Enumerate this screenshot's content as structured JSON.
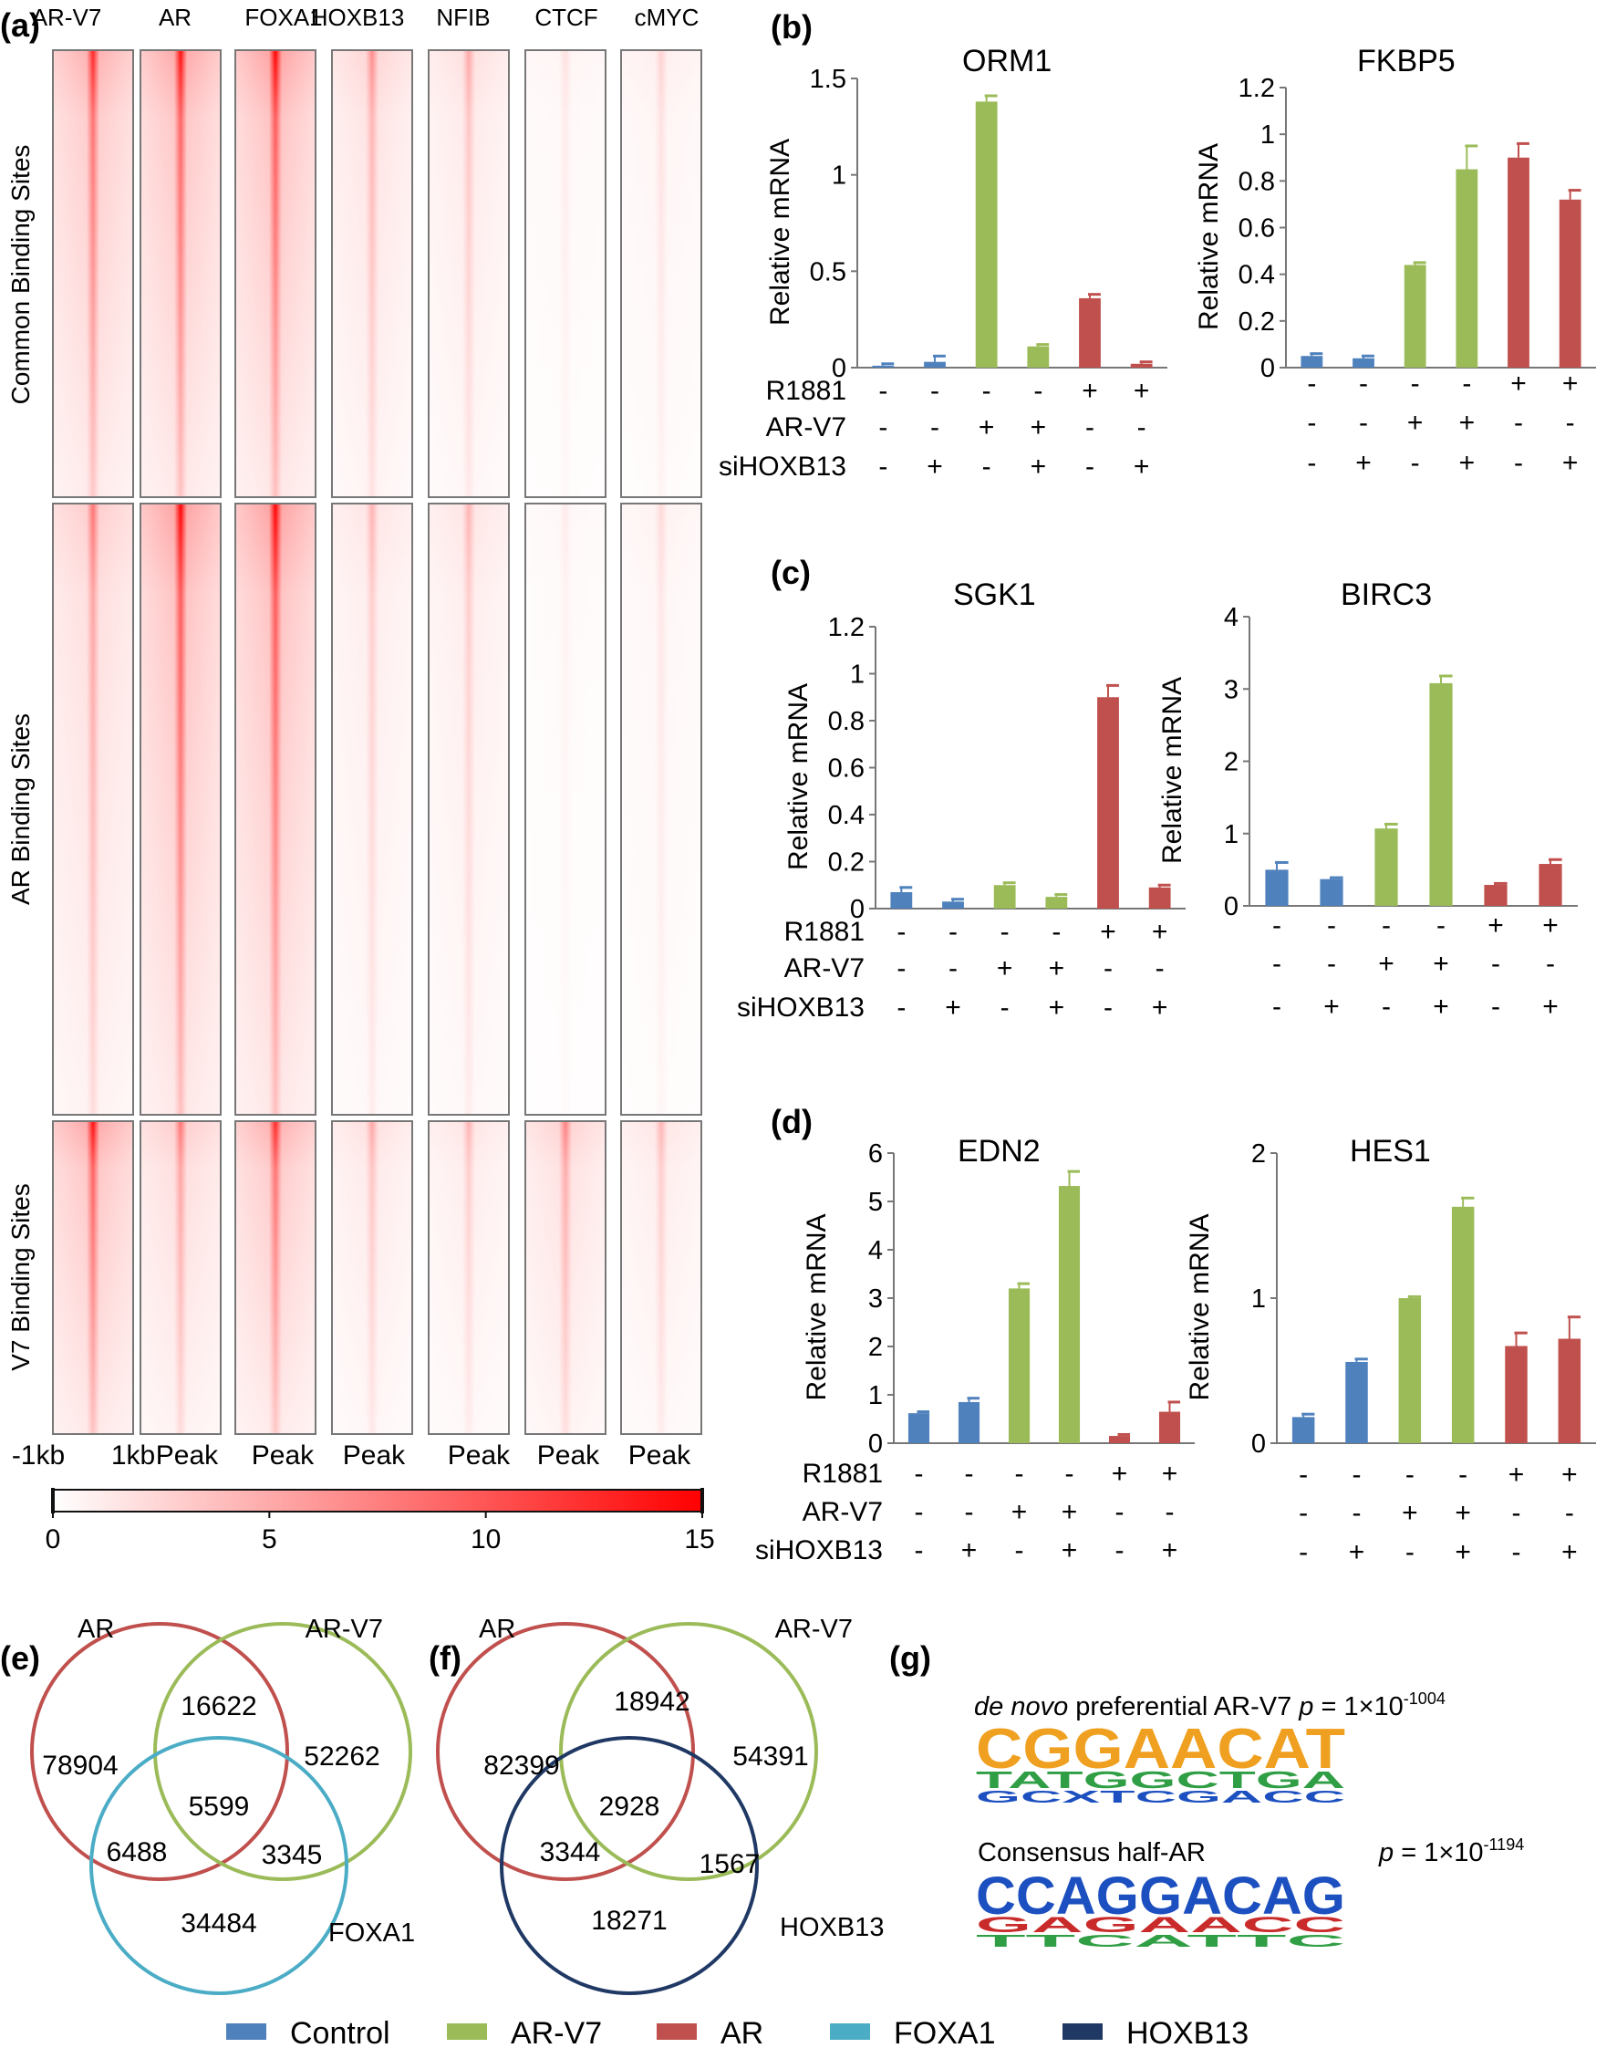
{
  "panel_labels": {
    "a": "(a)",
    "b": "(b)",
    "c": "(c)",
    "d": "(d)",
    "e": "(e)",
    "f": "(f)",
    "g": "(g)"
  },
  "legend": {
    "items": [
      {
        "name": "Control",
        "color": "#4f81bd"
      },
      {
        "name": "AR-V7",
        "color": "#9bbb59"
      },
      {
        "name": "AR",
        "color": "#c0504d"
      },
      {
        "name": "FOXA1",
        "color": "#4bacc6"
      },
      {
        "name": "HOXB13",
        "color": "#1f3864"
      }
    ]
  },
  "chart_data": [
    {
      "type": "heatmap",
      "panel": "(a)",
      "columns": [
        "AR-V7",
        "AR",
        "FOXA1",
        "HOXB13",
        "NFIB",
        "CTCF",
        "cMYC"
      ],
      "row_groups": [
        "Common Binding Sites",
        "AR Binding Sites",
        "V7 Binding Sites"
      ],
      "x_labels": [
        "-1kb",
        "1kb",
        "Peak",
        "Peak",
        "Peak",
        "Peak",
        "Peak",
        "Peak"
      ],
      "colorbar": {
        "min": 0,
        "max": 15,
        "ticks": [
          0,
          5,
          10,
          15
        ],
        "colors": [
          "#ffffff",
          "#ff0000"
        ]
      },
      "relative_intensity": [
        [
          0.85,
          0.95,
          1.0,
          0.45,
          0.35,
          0.12,
          0.18
        ],
        [
          0.55,
          1.0,
          1.0,
          0.3,
          0.3,
          0.08,
          0.15
        ],
        [
          0.95,
          0.55,
          0.85,
          0.35,
          0.3,
          0.5,
          0.3
        ]
      ]
    },
    {
      "type": "bar",
      "panel": "(b)",
      "title": "ORM1",
      "ylabel": "Relative mRNA",
      "ylim": [
        0,
        1.5
      ],
      "yticks": [
        "0",
        "0.5",
        "1",
        "1.5"
      ],
      "values": [
        0.01,
        0.03,
        1.38,
        0.11,
        0.36,
        0.02
      ],
      "errors": [
        0.01,
        0.03,
        0.03,
        0.01,
        0.02,
        0.01
      ],
      "colors": [
        "#4f81bd",
        "#4f81bd",
        "#9bbb59",
        "#9bbb59",
        "#c0504d",
        "#c0504d"
      ],
      "conditions": {
        "R1881": [
          "-",
          "-",
          "-",
          "-",
          "+",
          "+"
        ],
        "AR-V7": [
          "-",
          "-",
          "+",
          "+",
          "-",
          "-"
        ],
        "siHOXB13": [
          "-",
          "+",
          "-",
          "+",
          "-",
          "+"
        ]
      }
    },
    {
      "type": "bar",
      "panel": "(b)",
      "title": "FKBP5",
      "ylabel": "Relative mRNA",
      "ylim": [
        0,
        1.2
      ],
      "yticks": [
        "0",
        "0.2",
        "0.4",
        "0.6",
        "0.8",
        "1",
        "1.2"
      ],
      "values": [
        0.05,
        0.04,
        0.44,
        0.85,
        0.9,
        0.72
      ],
      "errors": [
        0.01,
        0.01,
        0.01,
        0.1,
        0.06,
        0.04
      ],
      "colors": [
        "#4f81bd",
        "#4f81bd",
        "#9bbb59",
        "#9bbb59",
        "#c0504d",
        "#c0504d"
      ],
      "conditions": {
        "R1881": [
          "-",
          "-",
          "-",
          "-",
          "+",
          "+"
        ],
        "AR-V7": [
          "-",
          "-",
          "+",
          "+",
          "-",
          "-"
        ],
        "siHOXB13": [
          "-",
          "+",
          "-",
          "+",
          "-",
          "+"
        ]
      }
    },
    {
      "type": "bar",
      "panel": "(c)",
      "title": "SGK1",
      "ylabel": "Relative mRNA",
      "ylim": [
        0,
        1.2
      ],
      "yticks": [
        "0",
        "0.2",
        "0.4",
        "0.6",
        "0.8",
        "1",
        "1.2"
      ],
      "values": [
        0.07,
        0.03,
        0.1,
        0.05,
        0.9,
        0.09
      ],
      "errors": [
        0.02,
        0.01,
        0.01,
        0.01,
        0.05,
        0.01
      ],
      "colors": [
        "#4f81bd",
        "#4f81bd",
        "#9bbb59",
        "#9bbb59",
        "#c0504d",
        "#c0504d"
      ],
      "conditions": {
        "R1881": [
          "-",
          "-",
          "-",
          "-",
          "+",
          "+"
        ],
        "AR-V7": [
          "-",
          "-",
          "+",
          "+",
          "-",
          "-"
        ],
        "siHOXB13": [
          "-",
          "+",
          "-",
          "+",
          "-",
          "+"
        ]
      }
    },
    {
      "type": "bar",
      "panel": "(c)",
      "title": "BIRC3",
      "ylabel": "Relative mRNA",
      "ylim": [
        0,
        4
      ],
      "yticks": [
        "0",
        "1",
        "2",
        "3",
        "4"
      ],
      "values": [
        0.5,
        0.37,
        1.07,
        3.08,
        0.29,
        0.58
      ],
      "errors": [
        0.1,
        0.02,
        0.06,
        0.1,
        0.02,
        0.06
      ],
      "colors": [
        "#4f81bd",
        "#4f81bd",
        "#9bbb59",
        "#9bbb59",
        "#c0504d",
        "#c0504d"
      ],
      "conditions": {
        "R1881": [
          "-",
          "-",
          "-",
          "-",
          "+",
          "+"
        ],
        "AR-V7": [
          "-",
          "-",
          "+",
          "+",
          "-",
          "-"
        ],
        "siHOXB13": [
          "-",
          "+",
          "-",
          "+",
          "-",
          "+"
        ]
      }
    },
    {
      "type": "bar",
      "panel": "(d)",
      "title": "EDN2",
      "ylabel": "Relative mRNA",
      "ylim": [
        0,
        6
      ],
      "yticks": [
        "0",
        "1",
        "2",
        "3",
        "4",
        "5",
        "6"
      ],
      "values": [
        0.62,
        0.85,
        3.2,
        5.32,
        0.15,
        0.65
      ],
      "errors": [
        0.03,
        0.08,
        0.1,
        0.3,
        0.03,
        0.2
      ],
      "colors": [
        "#4f81bd",
        "#4f81bd",
        "#9bbb59",
        "#9bbb59",
        "#c0504d",
        "#c0504d"
      ],
      "conditions": {
        "R1881": [
          "-",
          "-",
          "-",
          "-",
          "+",
          "+"
        ],
        "AR-V7": [
          "-",
          "-",
          "+",
          "+",
          "-",
          "-"
        ],
        "siHOXB13": [
          "-",
          "+",
          "-",
          "+",
          "-",
          "+"
        ]
      }
    },
    {
      "type": "bar",
      "panel": "(d)",
      "title": "HES1",
      "ylabel": "Relative mRNA",
      "ylim": [
        0,
        2
      ],
      "yticks": [
        "0",
        "1",
        "2"
      ],
      "values": [
        0.18,
        0.56,
        1.0,
        1.63,
        0.67,
        0.72
      ],
      "errors": [
        0.02,
        0.02,
        0.01,
        0.06,
        0.09,
        0.15
      ],
      "colors": [
        "#4f81bd",
        "#4f81bd",
        "#9bbb59",
        "#9bbb59",
        "#c0504d",
        "#c0504d"
      ],
      "conditions": {
        "R1881": [
          "-",
          "-",
          "-",
          "-",
          "+",
          "+"
        ],
        "AR-V7": [
          "-",
          "-",
          "+",
          "+",
          "-",
          "-"
        ],
        "siHOXB13": [
          "-",
          "+",
          "-",
          "+",
          "-",
          "+"
        ]
      }
    },
    {
      "type": "venn",
      "panel": "(e)",
      "sets": [
        {
          "name": "AR",
          "color": "#c0504d"
        },
        {
          "name": "AR-V7",
          "color": "#9bbb59"
        },
        {
          "name": "FOXA1",
          "color": "#4bacc6"
        }
      ],
      "regions": {
        "AR_only": "78904",
        "ARV7_only": "52262",
        "third_only": "34484",
        "AR_ARV7": "16622",
        "AR_third": "6488",
        "ARV7_third": "3345",
        "all": "5599"
      }
    },
    {
      "type": "venn",
      "panel": "(f)",
      "sets": [
        {
          "name": "AR",
          "color": "#c0504d"
        },
        {
          "name": "AR-V7",
          "color": "#9bbb59"
        },
        {
          "name": "HOXB13",
          "color": "#1f3864"
        }
      ],
      "regions": {
        "AR_only": "82399",
        "ARV7_only": "54391",
        "third_only": "18271",
        "AR_ARV7": "18942",
        "AR_third": "3344",
        "ARV7_third": "1567",
        "all": "2928"
      }
    }
  ],
  "motifs": {
    "top": {
      "title_italic": "de novo",
      "title_rest": " preferential AR-V7 ",
      "p_label": "p",
      "p_value": " = 1×10",
      "p_exp": "-1004",
      "logo_top": "CGGAACAT",
      "logo_mid": "TATGGCTGA",
      "logo_low": "GCXTCGACC"
    },
    "bottom": {
      "title": "Consensus half-AR",
      "p_label": "p",
      "p_value": " = 1×10",
      "p_exp": "-1194",
      "logo_top": "CCAGGACAG",
      "logo_mid": "GAGAACC",
      "logo_low": "TTCATTC"
    }
  }
}
